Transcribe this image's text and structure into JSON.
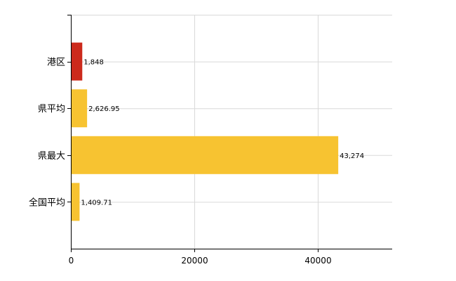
{
  "chart_data": {
    "type": "bar",
    "orientation": "horizontal",
    "categories": [
      "港区",
      "県平均",
      "県最大",
      "全国平均"
    ],
    "values": [
      1848,
      2626.95,
      43274,
      1409.71
    ],
    "value_labels": [
      "1,848",
      "2,626.95",
      "43,274",
      "1,409.71"
    ],
    "bar_colors": [
      "#cc2a1c",
      "#f7c331",
      "#f7c331",
      "#f7c331"
    ],
    "xlim": [
      0,
      52000
    ],
    "x_ticks": [
      0,
      20000,
      40000
    ],
    "x_tick_labels": [
      "0",
      "20000",
      "40000"
    ],
    "grid": true,
    "legend": "none",
    "title": "",
    "xlabel": "",
    "ylabel": ""
  }
}
